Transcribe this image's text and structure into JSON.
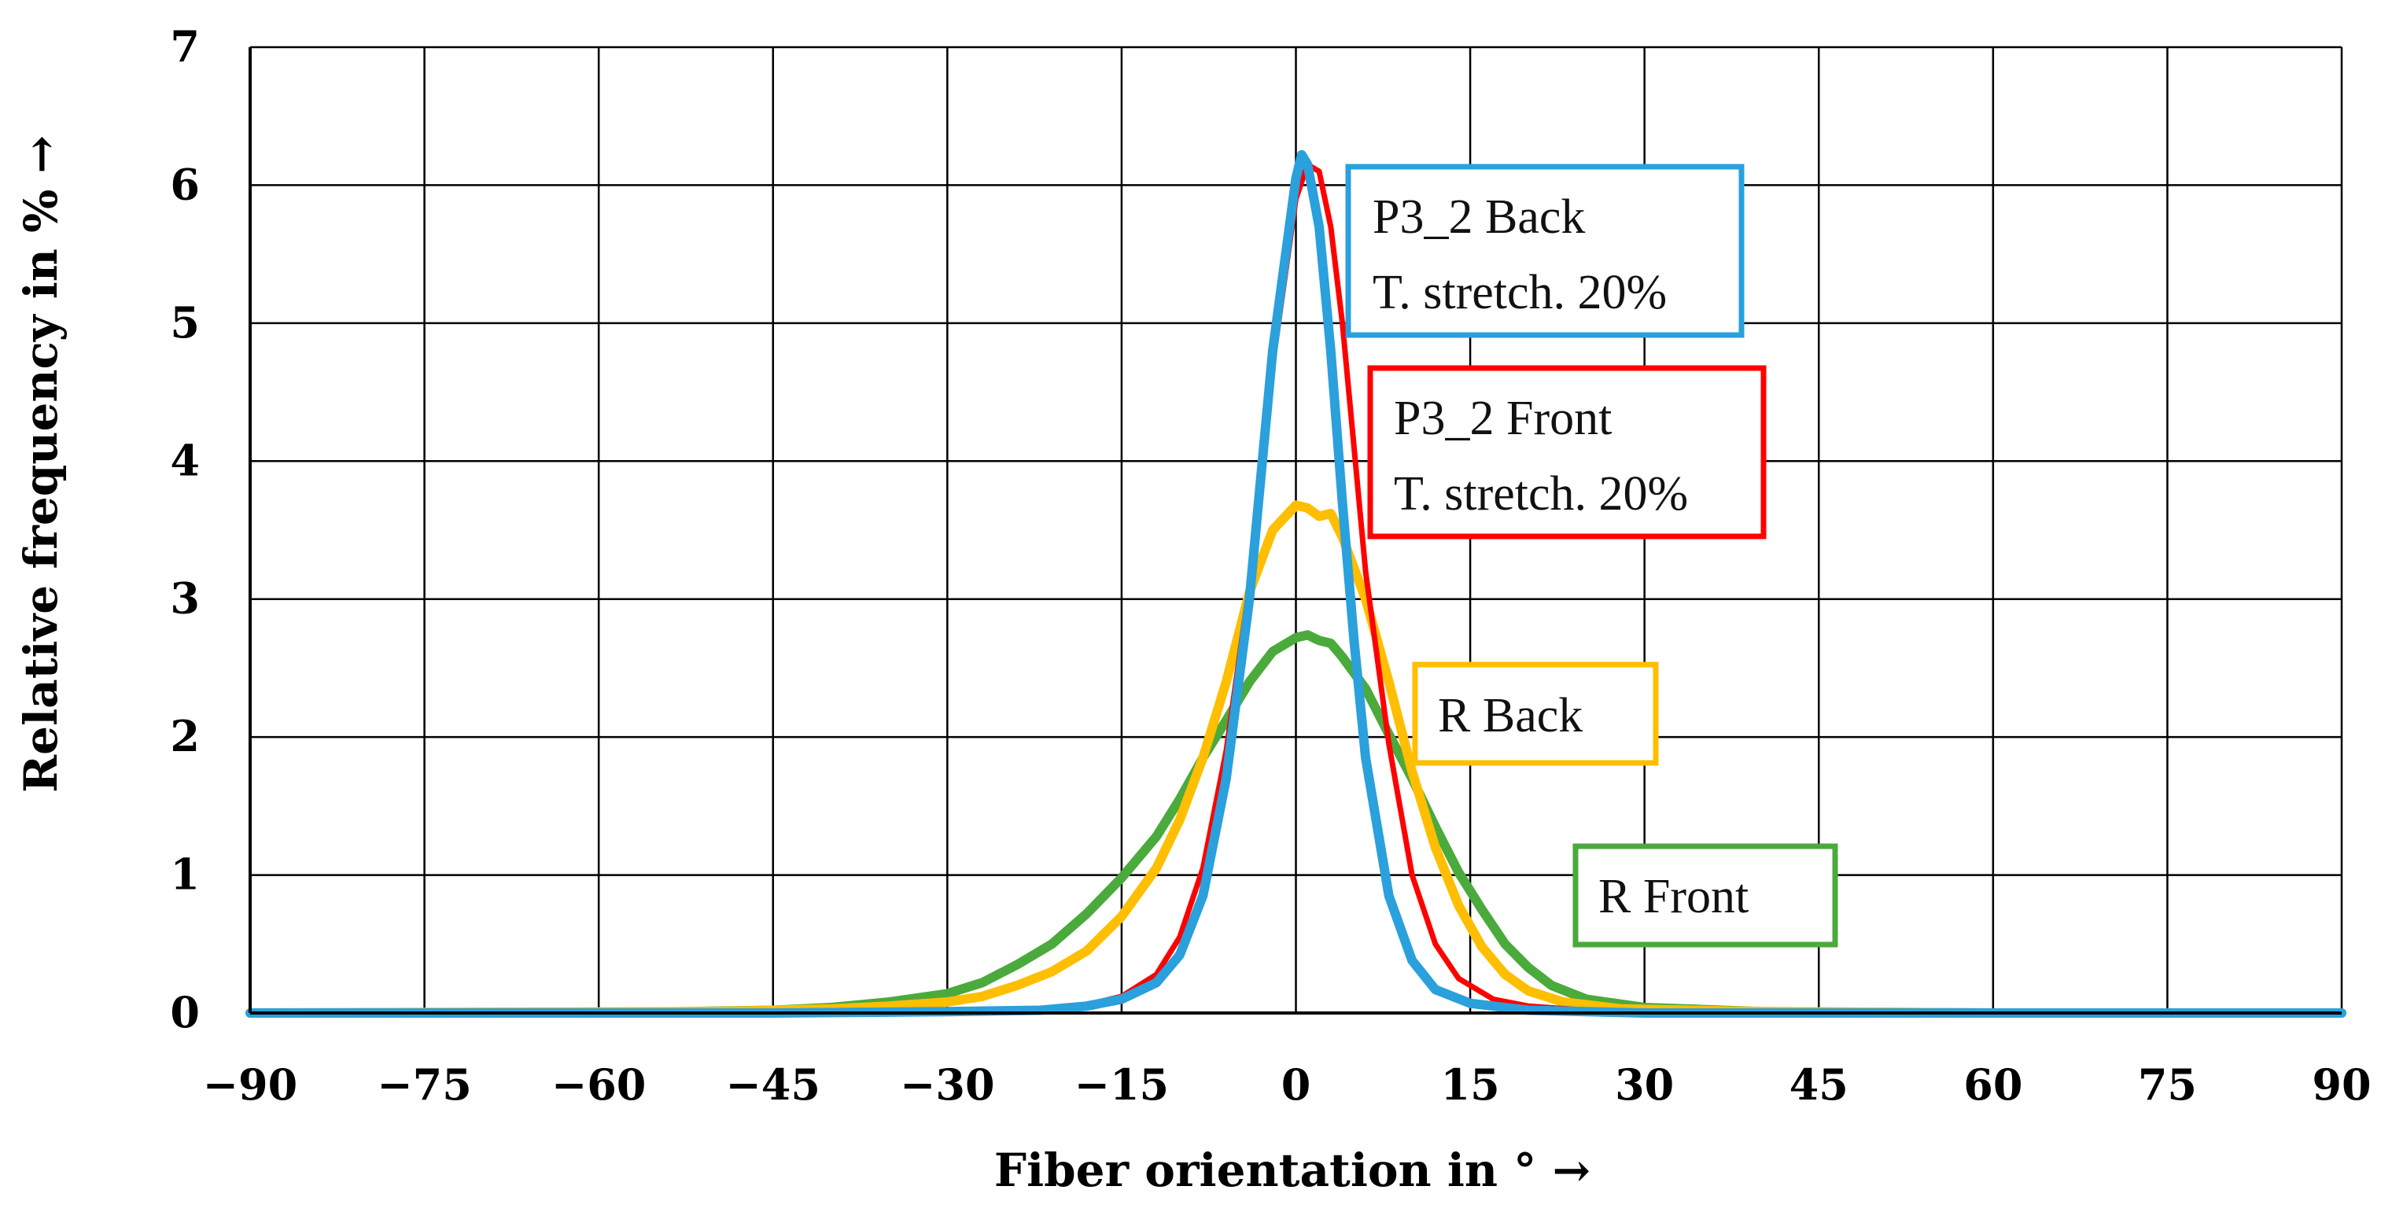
{
  "chart_data": {
    "type": "line",
    "title": "",
    "xlabel": "Fiber orientation in ° →",
    "ylabel": "Relative frequency in % →",
    "xlim": [
      -90,
      90
    ],
    "ylim": [
      0,
      7
    ],
    "xticks": [
      -90,
      -75,
      -60,
      -45,
      -30,
      -15,
      0,
      15,
      30,
      45,
      60,
      75,
      90
    ],
    "yticks": [
      0,
      1,
      2,
      3,
      4,
      5,
      6,
      7
    ],
    "xtick_labels": [
      "−90",
      "−75",
      "−60",
      "−45",
      "−30",
      "−15",
      "0",
      "15",
      "30",
      "45",
      "60",
      "75",
      "90"
    ],
    "ytick_labels": [
      "0",
      "1",
      "2",
      "3",
      "4",
      "5",
      "6",
      "7"
    ],
    "grid": true,
    "series": [
      {
        "name": "R Front",
        "color": "#4aaa3c",
        "points": [
          [
            -90,
            0
          ],
          [
            -60,
            0.0
          ],
          [
            -45,
            0.02
          ],
          [
            -40,
            0.04
          ],
          [
            -35,
            0.08
          ],
          [
            -30,
            0.14
          ],
          [
            -27,
            0.22
          ],
          [
            -24,
            0.35
          ],
          [
            -21,
            0.5
          ],
          [
            -18,
            0.72
          ],
          [
            -15,
            0.98
          ],
          [
            -12,
            1.28
          ],
          [
            -10,
            1.55
          ],
          [
            -8,
            1.85
          ],
          [
            -6,
            2.12
          ],
          [
            -4,
            2.4
          ],
          [
            -2,
            2.62
          ],
          [
            0,
            2.72
          ],
          [
            1,
            2.74
          ],
          [
            2,
            2.7
          ],
          [
            3,
            2.68
          ],
          [
            4,
            2.58
          ],
          [
            6,
            2.35
          ],
          [
            8,
            2.02
          ],
          [
            10,
            1.7
          ],
          [
            12,
            1.35
          ],
          [
            14,
            1.02
          ],
          [
            16,
            0.75
          ],
          [
            18,
            0.5
          ],
          [
            20,
            0.33
          ],
          [
            22,
            0.2
          ],
          [
            25,
            0.1
          ],
          [
            30,
            0.04
          ],
          [
            40,
            0.01
          ],
          [
            60,
            0
          ],
          [
            90,
            0
          ]
        ]
      },
      {
        "name": "R Back",
        "color": "#ffbe00",
        "points": [
          [
            -90,
            0
          ],
          [
            -50,
            0.01
          ],
          [
            -40,
            0.03
          ],
          [
            -35,
            0.05
          ],
          [
            -30,
            0.08
          ],
          [
            -27,
            0.12
          ],
          [
            -24,
            0.2
          ],
          [
            -21,
            0.3
          ],
          [
            -18,
            0.45
          ],
          [
            -15,
            0.7
          ],
          [
            -12,
            1.05
          ],
          [
            -10,
            1.4
          ],
          [
            -8,
            1.85
          ],
          [
            -6,
            2.4
          ],
          [
            -4,
            3.05
          ],
          [
            -2,
            3.5
          ],
          [
            0,
            3.68
          ],
          [
            1,
            3.66
          ],
          [
            2,
            3.6
          ],
          [
            3,
            3.62
          ],
          [
            4,
            3.45
          ],
          [
            6,
            3.0
          ],
          [
            8,
            2.4
          ],
          [
            10,
            1.75
          ],
          [
            12,
            1.2
          ],
          [
            14,
            0.78
          ],
          [
            16,
            0.48
          ],
          [
            18,
            0.28
          ],
          [
            20,
            0.16
          ],
          [
            23,
            0.08
          ],
          [
            28,
            0.03
          ],
          [
            40,
            0.01
          ],
          [
            60,
            0
          ],
          [
            90,
            0
          ]
        ]
      },
      {
        "name": "P3_2 Front\nT. stretch. 20%",
        "color": "#ff0000",
        "points": [
          [
            -90,
            0
          ],
          [
            -45,
            0.0
          ],
          [
            -30,
            0.01
          ],
          [
            -22,
            0.03
          ],
          [
            -18,
            0.06
          ],
          [
            -15,
            0.12
          ],
          [
            -12,
            0.28
          ],
          [
            -10,
            0.55
          ],
          [
            -8,
            1.05
          ],
          [
            -6,
            1.9
          ],
          [
            -4,
            3.1
          ],
          [
            -2,
            4.7
          ],
          [
            0,
            5.9
          ],
          [
            1,
            6.15
          ],
          [
            2,
            6.1
          ],
          [
            3,
            5.7
          ],
          [
            4,
            5.0
          ],
          [
            5,
            4.1
          ],
          [
            6,
            3.2
          ],
          [
            8,
            1.95
          ],
          [
            10,
            1.0
          ],
          [
            12,
            0.5
          ],
          [
            14,
            0.25
          ],
          [
            17,
            0.1
          ],
          [
            20,
            0.05
          ],
          [
            25,
            0.02
          ],
          [
            35,
            0.0
          ],
          [
            90,
            0
          ]
        ]
      },
      {
        "name": "P3_2 Back\nT. stretch. 20%",
        "color": "#2aa0dc",
        "points": [
          [
            -90,
            0
          ],
          [
            -45,
            0.0
          ],
          [
            -30,
            0.01
          ],
          [
            -22,
            0.02
          ],
          [
            -18,
            0.05
          ],
          [
            -15,
            0.1
          ],
          [
            -12,
            0.22
          ],
          [
            -10,
            0.42
          ],
          [
            -8,
            0.85
          ],
          [
            -6,
            1.7
          ],
          [
            -4,
            3.0
          ],
          [
            -2,
            4.8
          ],
          [
            0,
            6.05
          ],
          [
            0.5,
            6.22
          ],
          [
            1,
            6.15
          ],
          [
            2,
            5.7
          ],
          [
            3,
            4.8
          ],
          [
            4,
            3.7
          ],
          [
            5,
            2.7
          ],
          [
            6,
            1.85
          ],
          [
            8,
            0.85
          ],
          [
            10,
            0.38
          ],
          [
            12,
            0.17
          ],
          [
            15,
            0.07
          ],
          [
            20,
            0.02
          ],
          [
            30,
            0.0
          ],
          [
            90,
            0
          ]
        ]
      }
    ],
    "legend_boxes": [
      {
        "lines": [
          "P3_2 Back",
          "T. stretch. 20%"
        ],
        "color": "#2aa0dc"
      },
      {
        "lines": [
          "P3_2 Front",
          "T. stretch. 20%"
        ],
        "color": "#ff0000"
      },
      {
        "lines": [
          "R Back"
        ],
        "color": "#ffbe00"
      },
      {
        "lines": [
          "R Front"
        ],
        "color": "#4aaa3c"
      }
    ]
  }
}
